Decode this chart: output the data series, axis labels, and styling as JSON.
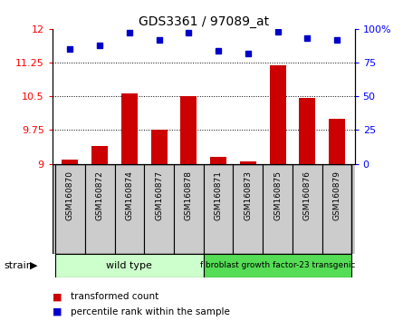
{
  "title": "GDS3361 / 97089_at",
  "samples": [
    "GSM160870",
    "GSM160872",
    "GSM160874",
    "GSM160877",
    "GSM160878",
    "GSM160871",
    "GSM160873",
    "GSM160875",
    "GSM160876",
    "GSM160879"
  ],
  "transformed_counts": [
    9.1,
    9.4,
    10.57,
    9.75,
    10.5,
    9.15,
    9.05,
    11.2,
    10.47,
    10.0
  ],
  "percentile_ranks": [
    85,
    88,
    97,
    92,
    97,
    84,
    82,
    98,
    93,
    92
  ],
  "ylim_left": [
    9.0,
    12.0
  ],
  "ylim_right": [
    0,
    100
  ],
  "yticks_left": [
    9.0,
    9.75,
    10.5,
    11.25,
    12.0
  ],
  "yticks_right": [
    0,
    25,
    50,
    75,
    100
  ],
  "grid_lines": [
    9.75,
    10.5,
    11.25
  ],
  "bar_color": "#cc0000",
  "dot_color": "#0000cc",
  "bg_color": "#ffffff",
  "xlab_bg": "#cccccc",
  "strain_wt_color": "#ccffcc",
  "strain_tg_color": "#55dd55",
  "strain_label": "strain",
  "wt_label": "wild type",
  "tg_label": "fibroblast growth factor-23 transgenic",
  "legend_bar_label": "transformed count",
  "legend_dot_label": "percentile rank within the sample",
  "split_index": 5,
  "n": 10
}
